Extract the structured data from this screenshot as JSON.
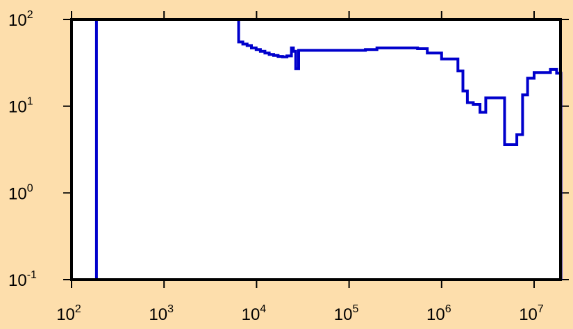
{
  "chart_data": {
    "type": "line",
    "title": "",
    "xlabel": "",
    "ylabel": "",
    "x_scale": "log",
    "y_scale": "log",
    "xlim": [
      100,
      20000000
    ],
    "ylim": [
      0.1,
      100
    ],
    "grid": false,
    "legend": "none",
    "line_style": "step",
    "colors": {
      "background": "#fddeac",
      "plot_area": "#ffffff",
      "axes": "#000000",
      "series": "#0000cc"
    },
    "x_ticks": [
      {
        "base": "10",
        "exp": "2",
        "value": 100
      },
      {
        "base": "10",
        "exp": "3",
        "value": 1000
      },
      {
        "base": "10",
        "exp": "4",
        "value": 10000
      },
      {
        "base": "10",
        "exp": "5",
        "value": 100000
      },
      {
        "base": "10",
        "exp": "6",
        "value": 1000000
      },
      {
        "base": "10",
        "exp": "7",
        "value": 10000000
      }
    ],
    "y_ticks": [
      {
        "base": "10",
        "exp": "2",
        "value": 100
      },
      {
        "base": "10",
        "exp": "1",
        "value": 10
      },
      {
        "base": "10",
        "exp": "0",
        "value": 1
      },
      {
        "base": "10",
        "exp": "-1",
        "value": 0.1
      }
    ],
    "series": [
      {
        "x": [
          186,
          6400,
          7100,
          7900,
          8800,
          9900,
          11000,
          12300,
          13700,
          15300,
          17100,
          19100,
          21300,
          23800,
          25000,
          26500,
          28500,
          32000,
          40000,
          50000,
          70000,
          100000,
          150000,
          200000,
          300000,
          400000,
          550000,
          700000,
          850000,
          1000000,
          1500000,
          1700000,
          1900000,
          2200000,
          2600000,
          3000000,
          4000000,
          4800000,
          5600000,
          6500000,
          7500000,
          8500000,
          10000000,
          12000000,
          15000000,
          17500000,
          19500000
        ],
        "y": [
          100,
          55,
          52,
          50,
          47,
          45,
          43,
          41,
          39.5,
          38.5,
          37.5,
          37,
          38,
          47,
          43,
          27,
          44,
          44,
          44,
          44,
          44,
          44,
          45,
          47,
          47,
          47,
          46,
          41,
          41,
          35,
          25.5,
          15,
          11,
          10.5,
          8.5,
          12.5,
          12.5,
          3.6,
          3.6,
          4.7,
          13.5,
          21,
          24.5,
          24.5,
          26.5,
          24,
          24
        ],
        "x_end": 19500000,
        "drop_to_min": true
      }
    ]
  }
}
